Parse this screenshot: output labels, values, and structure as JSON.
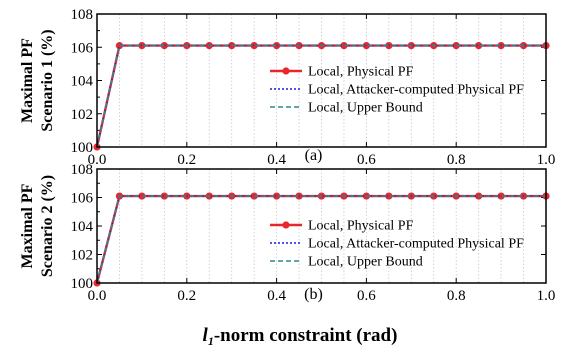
{
  "figure": {
    "xlabel_main": "l",
    "xlabel_sub": "1",
    "xlabel_rest": "-norm constraint (rad)"
  },
  "chart_data": [
    {
      "type": "line",
      "panel_label": "(a)",
      "ylabel_line1": "Maximal PF",
      "ylabel_line2": "Scenario 1 (%)",
      "xlim": [
        0.0,
        1.0
      ],
      "ylim": [
        100,
        108
      ],
      "xticks": [
        "0.0",
        "0.2",
        "0.4",
        "0.6",
        "0.8",
        "1.0"
      ],
      "yticks": [
        "100",
        "102",
        "104",
        "106",
        "108"
      ],
      "grid": "vertical-dotted",
      "legend_position": "center-right",
      "x": [
        0.0,
        0.05,
        0.1,
        0.15,
        0.2,
        0.25,
        0.3,
        0.35,
        0.4,
        0.45,
        0.5,
        0.55,
        0.6,
        0.65,
        0.7,
        0.75,
        0.8,
        0.85,
        0.9,
        0.95,
        1.0
      ],
      "series": [
        {
          "name": "Local, Physical PF",
          "color": "#e8262c",
          "style": "solid-marker",
          "values": [
            100.0,
            106.1,
            106.1,
            106.1,
            106.1,
            106.1,
            106.1,
            106.1,
            106.1,
            106.1,
            106.1,
            106.1,
            106.1,
            106.1,
            106.1,
            106.1,
            106.1,
            106.1,
            106.1,
            106.1,
            106.1
          ]
        },
        {
          "name": "Local, Attacker-computed Physical PF",
          "color": "#1a1ae6",
          "style": "dotted",
          "values": [
            100.0,
            106.1,
            106.1,
            106.1,
            106.1,
            106.1,
            106.1,
            106.1,
            106.1,
            106.1,
            106.1,
            106.1,
            106.1,
            106.1,
            106.1,
            106.1,
            106.1,
            106.1,
            106.1,
            106.1,
            106.1
          ]
        },
        {
          "name": "Local, Upper Bound",
          "color": "#2a8a8a",
          "style": "dashed",
          "values": [
            100.0,
            106.1,
            106.1,
            106.1,
            106.1,
            106.1,
            106.1,
            106.1,
            106.1,
            106.1,
            106.1,
            106.1,
            106.1,
            106.1,
            106.1,
            106.1,
            106.1,
            106.1,
            106.1,
            106.1,
            106.1
          ]
        }
      ]
    },
    {
      "type": "line",
      "panel_label": "(b)",
      "ylabel_line1": "Maximal PF",
      "ylabel_line2": "Scenario 2 (%)",
      "xlim": [
        0.0,
        1.0
      ],
      "ylim": [
        100,
        108
      ],
      "xticks": [
        "0.0",
        "0.2",
        "0.4",
        "0.6",
        "0.8",
        "1.0"
      ],
      "yticks": [
        "100",
        "102",
        "104",
        "106",
        "108"
      ],
      "grid": "vertical-dotted",
      "legend_position": "center-right",
      "x": [
        0.0,
        0.05,
        0.1,
        0.15,
        0.2,
        0.25,
        0.3,
        0.35,
        0.4,
        0.45,
        0.5,
        0.55,
        0.6,
        0.65,
        0.7,
        0.75,
        0.8,
        0.85,
        0.9,
        0.95,
        1.0
      ],
      "series": [
        {
          "name": "Local, Physical PF",
          "color": "#e8262c",
          "style": "solid-marker",
          "values": [
            100.0,
            106.1,
            106.1,
            106.1,
            106.1,
            106.1,
            106.1,
            106.1,
            106.1,
            106.1,
            106.1,
            106.1,
            106.1,
            106.1,
            106.1,
            106.1,
            106.1,
            106.1,
            106.1,
            106.1,
            106.1
          ]
        },
        {
          "name": "Local, Attacker-computed Physical PF",
          "color": "#1a1ae6",
          "style": "dotted",
          "values": [
            100.0,
            106.1,
            106.1,
            106.1,
            106.1,
            106.1,
            106.1,
            106.1,
            106.1,
            106.1,
            106.1,
            106.1,
            106.1,
            106.1,
            106.1,
            106.1,
            106.1,
            106.1,
            106.1,
            106.1,
            106.1
          ]
        },
        {
          "name": "Local, Upper Bound",
          "color": "#2a8a8a",
          "style": "dashed",
          "values": [
            100.0,
            106.1,
            106.1,
            106.1,
            106.1,
            106.1,
            106.1,
            106.1,
            106.1,
            106.1,
            106.1,
            106.1,
            106.1,
            106.1,
            106.1,
            106.1,
            106.1,
            106.1,
            106.1,
            106.1,
            106.1
          ]
        }
      ]
    }
  ]
}
